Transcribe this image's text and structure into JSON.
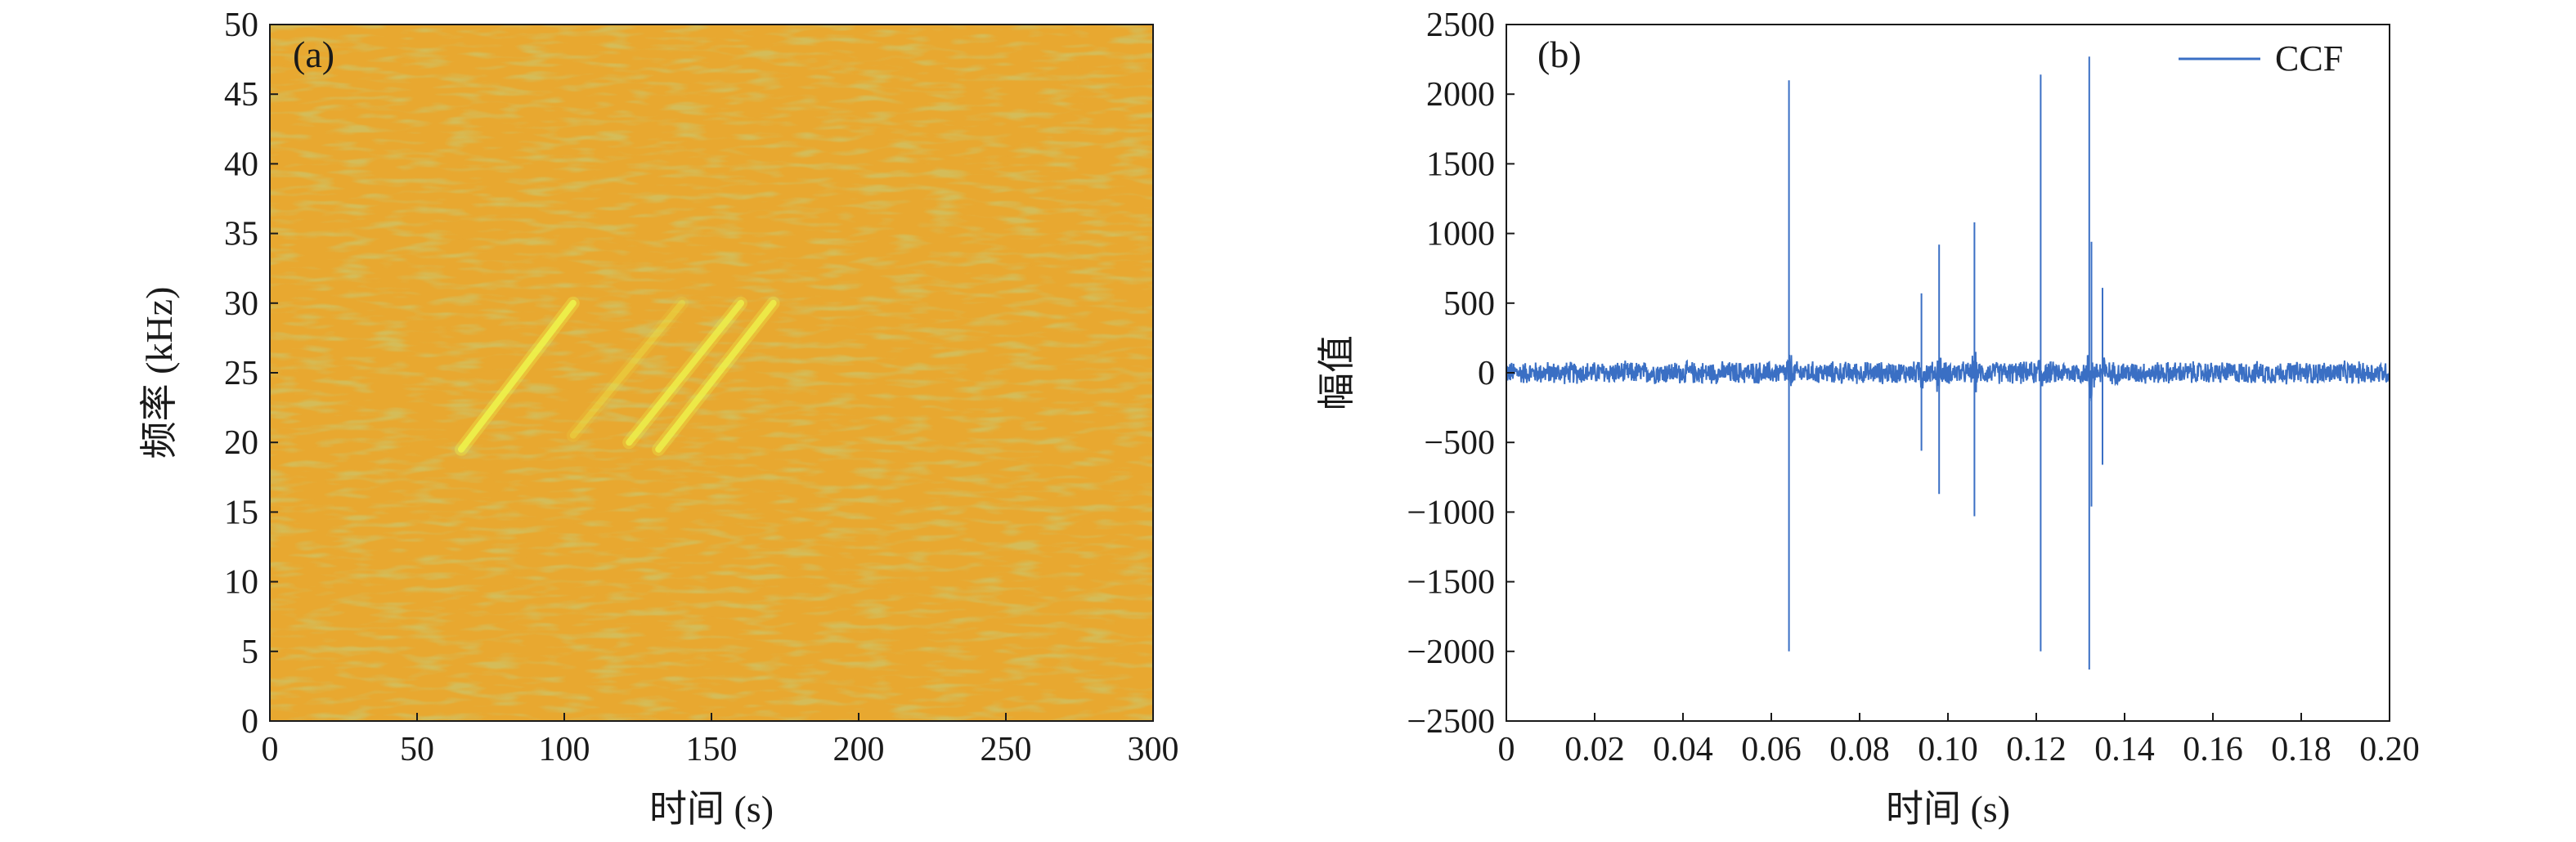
{
  "chart_data": [
    {
      "type": "heatmap",
      "panel_label": "(a)",
      "xlabel": "时间 (s)",
      "ylabel": "频率 (kHz)",
      "xlim": [
        0,
        300
      ],
      "ylim": [
        0,
        50
      ],
      "xticks": [
        0,
        50,
        100,
        150,
        200,
        250,
        300
      ],
      "yticks": [
        0,
        5,
        10,
        15,
        20,
        25,
        30,
        35,
        40,
        45,
        50
      ],
      "colors": {
        "background": "#e8a830",
        "mid": "#d9a52c",
        "low": "#9fa63c",
        "stripe": "#eef04a"
      },
      "stripes": [
        {
          "t_start": 65,
          "f_start": 19.5,
          "t_end": 103,
          "f_end": 30.0,
          "intensity": 1.0
        },
        {
          "t_start": 103,
          "f_start": 20.5,
          "t_end": 140,
          "f_end": 30.0,
          "intensity": 0.35
        },
        {
          "t_start": 122,
          "f_start": 20.0,
          "t_end": 160,
          "f_end": 30.0,
          "intensity": 0.85
        },
        {
          "t_start": 132,
          "f_start": 19.5,
          "t_end": 171,
          "f_end": 30.0,
          "intensity": 0.9
        }
      ]
    },
    {
      "type": "line",
      "panel_label": "(b)",
      "xlabel": "时间 (s)",
      "ylabel": "幅值",
      "xlim": [
        0,
        0.2
      ],
      "ylim": [
        -2500,
        2500
      ],
      "xticks": [
        0,
        0.02,
        0.04,
        0.06,
        0.08,
        0.1,
        0.12,
        0.14,
        0.16,
        0.18,
        0.2
      ],
      "xtick_labels": [
        "0",
        "0.02",
        "0.04",
        "0.06",
        "0.08",
        "0.10",
        "0.12",
        "0.14",
        "0.16",
        "0.18",
        "0.20"
      ],
      "yticks": [
        -2500,
        -2000,
        -1500,
        -1000,
        -500,
        0,
        500,
        1000,
        1500,
        2000,
        2500
      ],
      "ytick_labels": [
        "−2500",
        "−2000",
        "−1500",
        "−1000",
        "−500",
        "0",
        "500",
        "1000",
        "1500",
        "2000",
        "2500"
      ],
      "legend": {
        "location": "top-right"
      },
      "series": [
        {
          "name": "CCF",
          "color": "#3a6fc4",
          "noise_amplitude": 90,
          "peaks": [
            {
              "x": 0.064,
              "pos": 2100,
              "neg": -2000
            },
            {
              "x": 0.094,
              "pos": 570,
              "neg": -560
            },
            {
              "x": 0.098,
              "pos": 920,
              "neg": -870
            },
            {
              "x": 0.106,
              "pos": 1080,
              "neg": -1030
            },
            {
              "x": 0.121,
              "pos": 2140,
              "neg": -2000
            },
            {
              "x": 0.132,
              "pos": 2270,
              "neg": -2130
            },
            {
              "x": 0.1325,
              "pos": 940,
              "neg": -960
            },
            {
              "x": 0.135,
              "pos": 610,
              "neg": -660
            }
          ]
        }
      ]
    }
  ]
}
